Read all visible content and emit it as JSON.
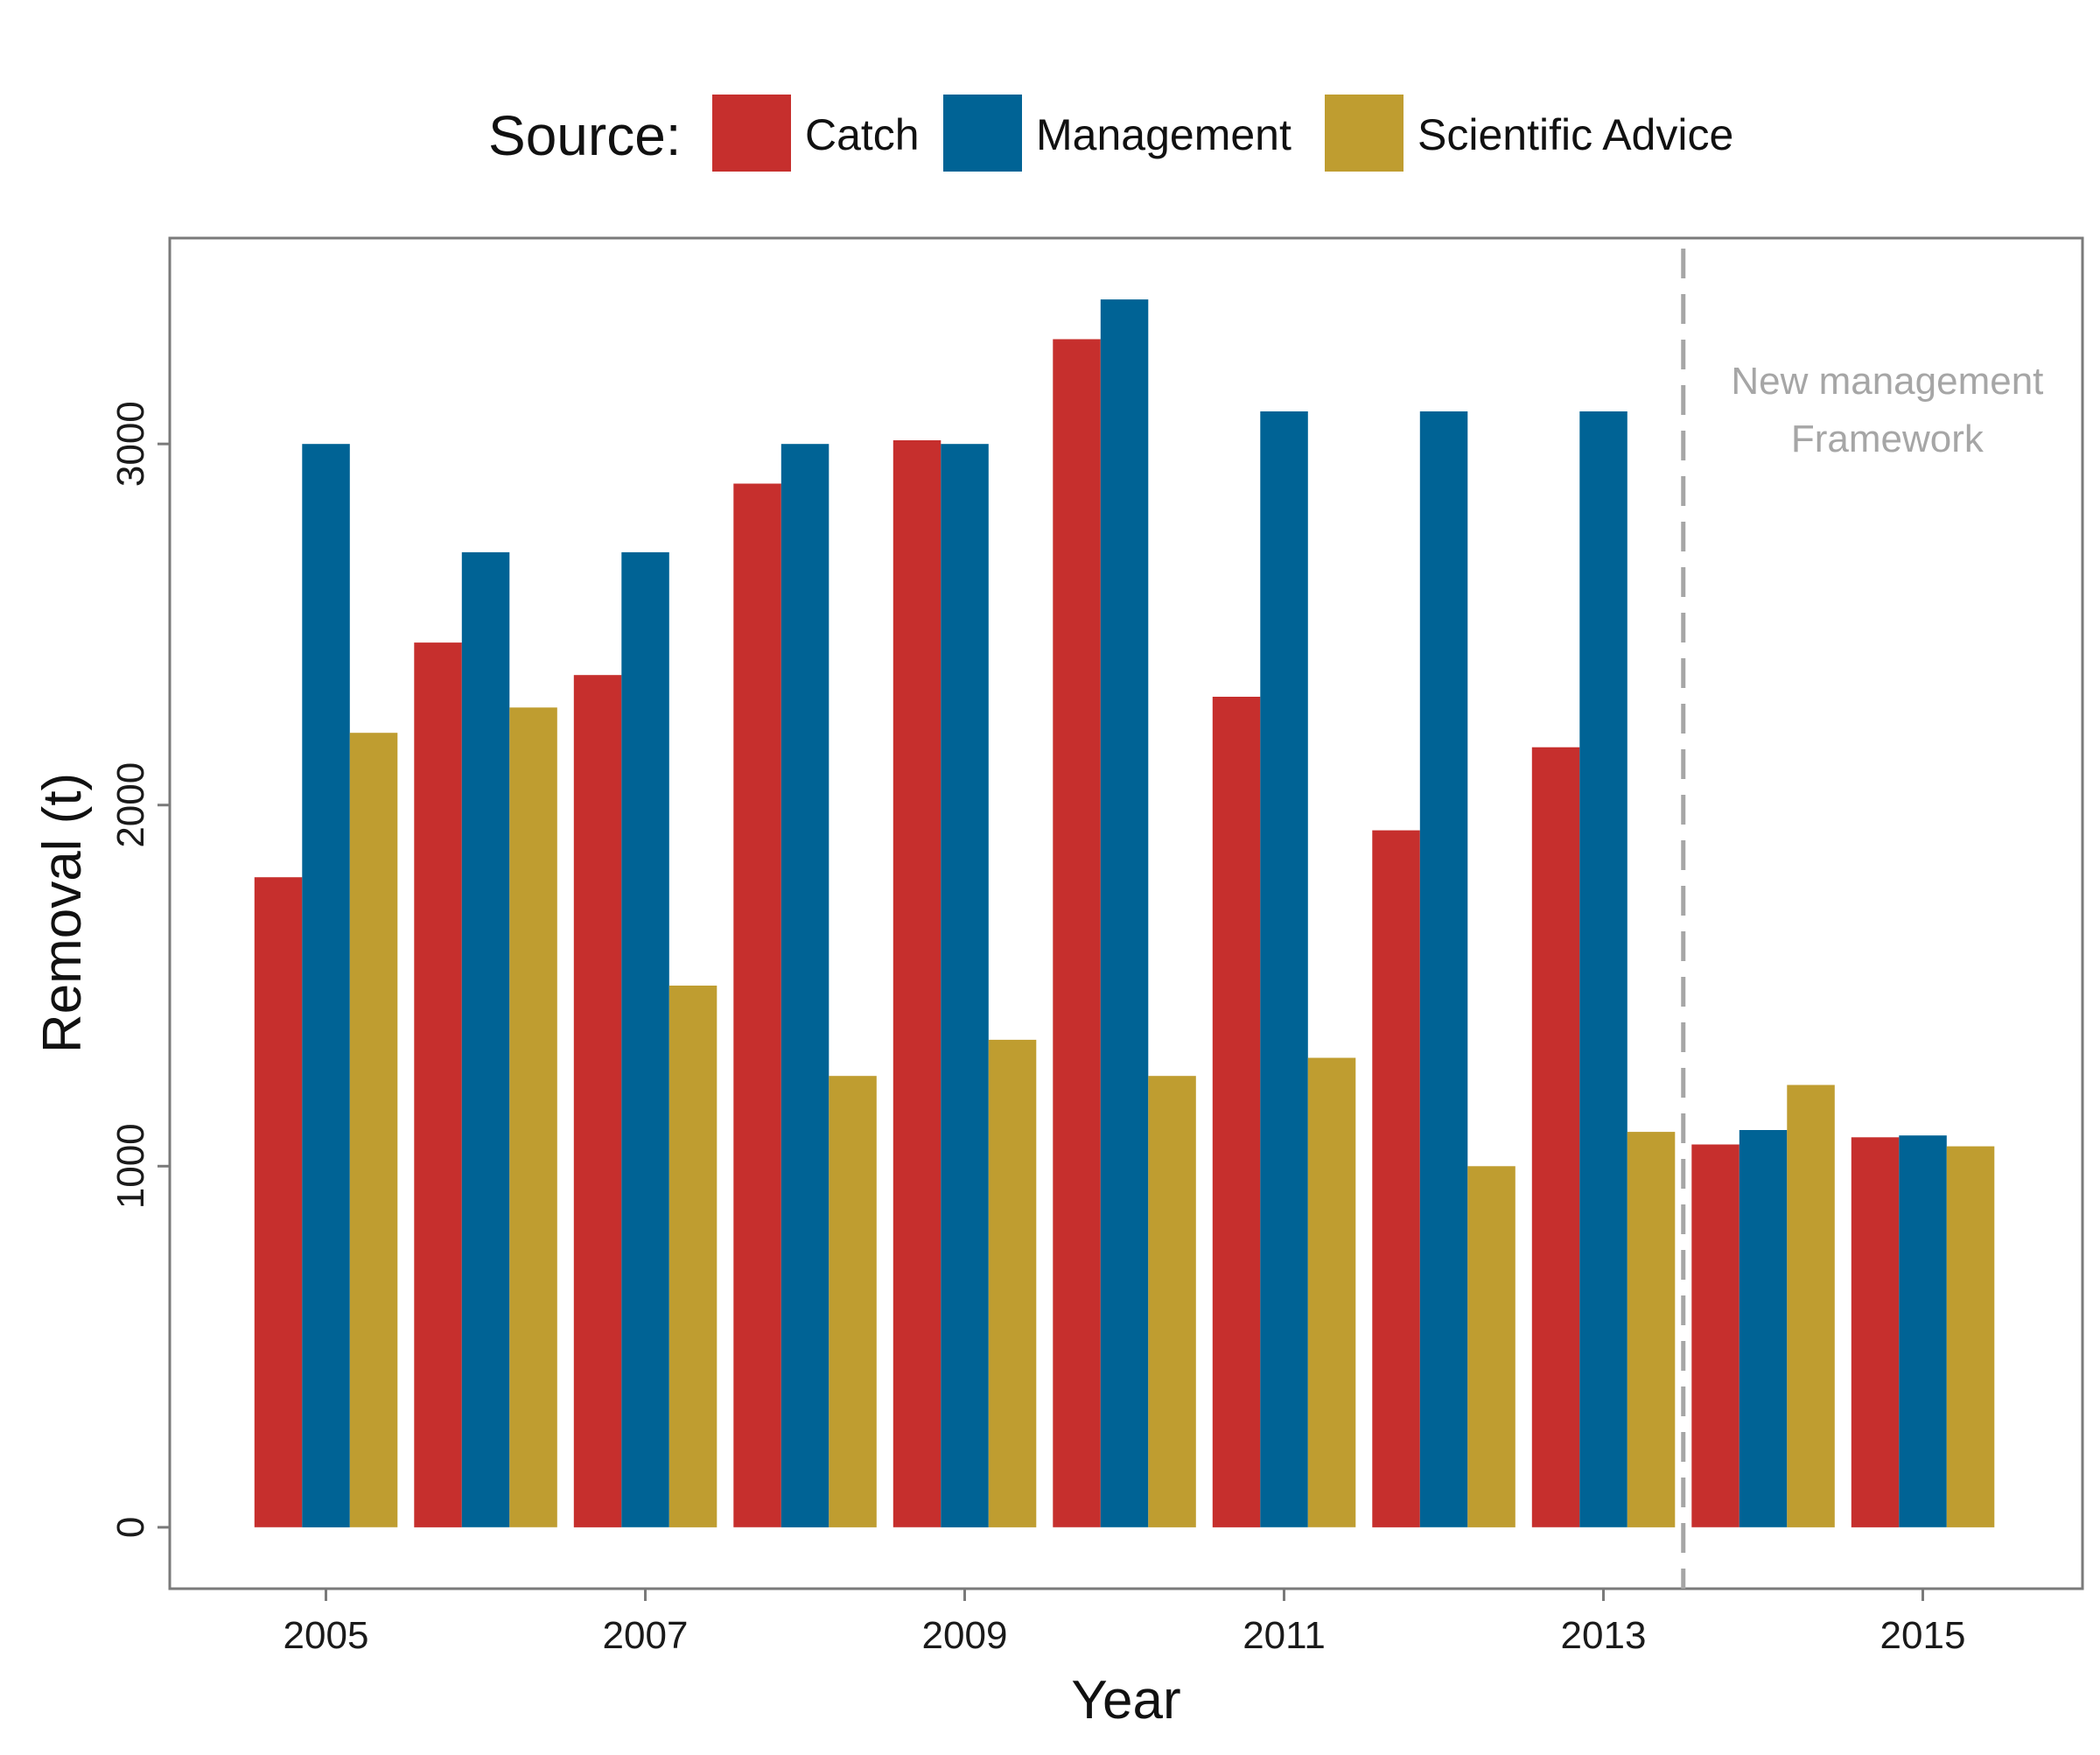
{
  "chart_data": {
    "type": "bar",
    "categories": [
      "2005",
      "2006",
      "2007",
      "2008",
      "2009",
      "2010",
      "2011",
      "2012",
      "2013",
      "2014",
      "2015"
    ],
    "series": [
      {
        "name": "Catch",
        "color": "#c62f2d",
        "values": [
          1800,
          2450,
          2360,
          2890,
          3010,
          3290,
          2300,
          1930,
          2160,
          1060,
          1080
        ]
      },
      {
        "name": "Management",
        "color": "#006395",
        "values": [
          3000,
          2700,
          2700,
          3000,
          3000,
          3400,
          3090,
          3090,
          3090,
          1100,
          1085
        ]
      },
      {
        "name": "Scientific Advice",
        "color": "#bf9d30",
        "values": [
          2200,
          2270,
          1500,
          1250,
          1350,
          1250,
          1300,
          1000,
          1095,
          1225,
          1055
        ]
      }
    ],
    "xlabel": "Year",
    "ylabel": "Removal (t)",
    "x_ticks": [
      "2005",
      "2007",
      "2009",
      "2011",
      "2013",
      "2015"
    ],
    "y_ticks": [
      0,
      1000,
      2000,
      3000
    ],
    "ylim": [
      -170,
      3570
    ],
    "grid": false,
    "legend": {
      "title": "Source:",
      "position": "top"
    },
    "annotation": {
      "lines": [
        "New management",
        "Framework"
      ],
      "after_category": "2013",
      "line_style": "dashed",
      "color": "#a6a6a6"
    }
  }
}
